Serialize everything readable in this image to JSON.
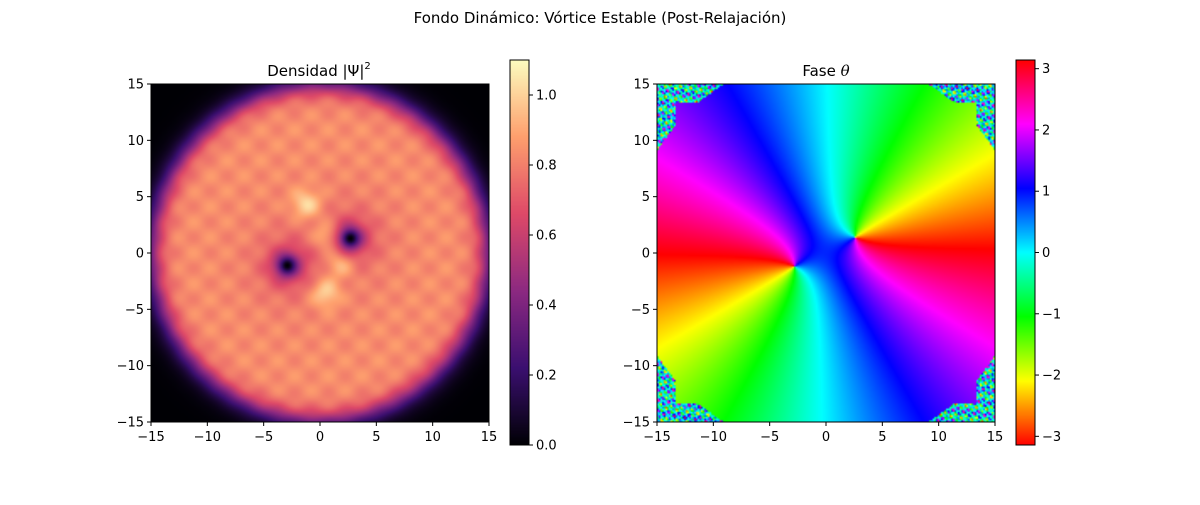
{
  "figure_title": "Fondo Dinámico: Vórtice Estable (Post-Relajación)",
  "colors": {
    "density_colormap": [
      "#000004",
      "#3b0f70",
      "#8c2981",
      "#de4968",
      "#fe9f6d",
      "#fcfdbf"
    ],
    "phase_colormap": "hsv"
  },
  "chart_data": [
    {
      "type": "heatmap",
      "title": "Densidad |Ψ|²",
      "title_main": "Densidad |Ψ|",
      "title_sup": "2",
      "xlim": [
        -15,
        15
      ],
      "ylim": [
        -15,
        15
      ],
      "x_ticks": [
        -15,
        -10,
        -5,
        0,
        5,
        10,
        15
      ],
      "y_ticks": [
        15,
        10,
        5,
        0,
        -5,
        -10,
        -15
      ],
      "x_tick_labels": [
        "−15",
        "−10",
        "−5",
        "0",
        "5",
        "10",
        "15"
      ],
      "y_tick_labels": [
        "15",
        "10",
        "5",
        "0",
        "−5",
        "−10",
        "−15"
      ],
      "colorbar": {
        "range": [
          0.0,
          1.1
        ],
        "ticks": [
          1.0,
          0.8,
          0.6,
          0.4,
          0.2,
          0.0
        ],
        "tick_labels": [
          "1.0",
          "0.8",
          "0.6",
          "0.4",
          "0.2",
          "0.0"
        ]
      },
      "condensate_radius": 14.8,
      "background_density": 0.85,
      "vortices": [
        {
          "x": 2.7,
          "y": 1.3,
          "core_density": 0.0
        },
        {
          "x": -2.9,
          "y": -1.1,
          "core_density": 0.0
        }
      ],
      "bright_spots": [
        {
          "x": -1.2,
          "y": 4.3
        },
        {
          "x": 0.6,
          "y": 1.5
        },
        {
          "x": 1.8,
          "y": -0.9
        },
        {
          "x": 0.5,
          "y": -3.5
        }
      ]
    },
    {
      "type": "heatmap",
      "title": "Fase θ",
      "title_main": "Fase ",
      "title_symbol": "θ",
      "xlim": [
        -15,
        15
      ],
      "ylim": [
        -15,
        15
      ],
      "x_ticks": [
        -15,
        -10,
        -5,
        0,
        5,
        10,
        15
      ],
      "y_ticks": [
        15,
        10,
        5,
        0,
        -5,
        -10,
        -15
      ],
      "x_tick_labels": [
        "−15",
        "−10",
        "−5",
        "0",
        "5",
        "10",
        "15"
      ],
      "y_tick_labels": [
        "15",
        "10",
        "5",
        "0",
        "−5",
        "−10",
        "−15"
      ],
      "colorbar": {
        "range": [
          -3.14159,
          3.14159
        ],
        "ticks": [
          3,
          2,
          1,
          0,
          -1,
          -2,
          -3
        ],
        "tick_labels": [
          "3",
          "2",
          "1",
          "0",
          "−1",
          "−2",
          "−3"
        ]
      },
      "vortices": [
        {
          "x": 2.6,
          "y": 1.4,
          "charge": 1
        },
        {
          "x": -2.8,
          "y": -1.2,
          "charge": 1
        }
      ]
    }
  ]
}
